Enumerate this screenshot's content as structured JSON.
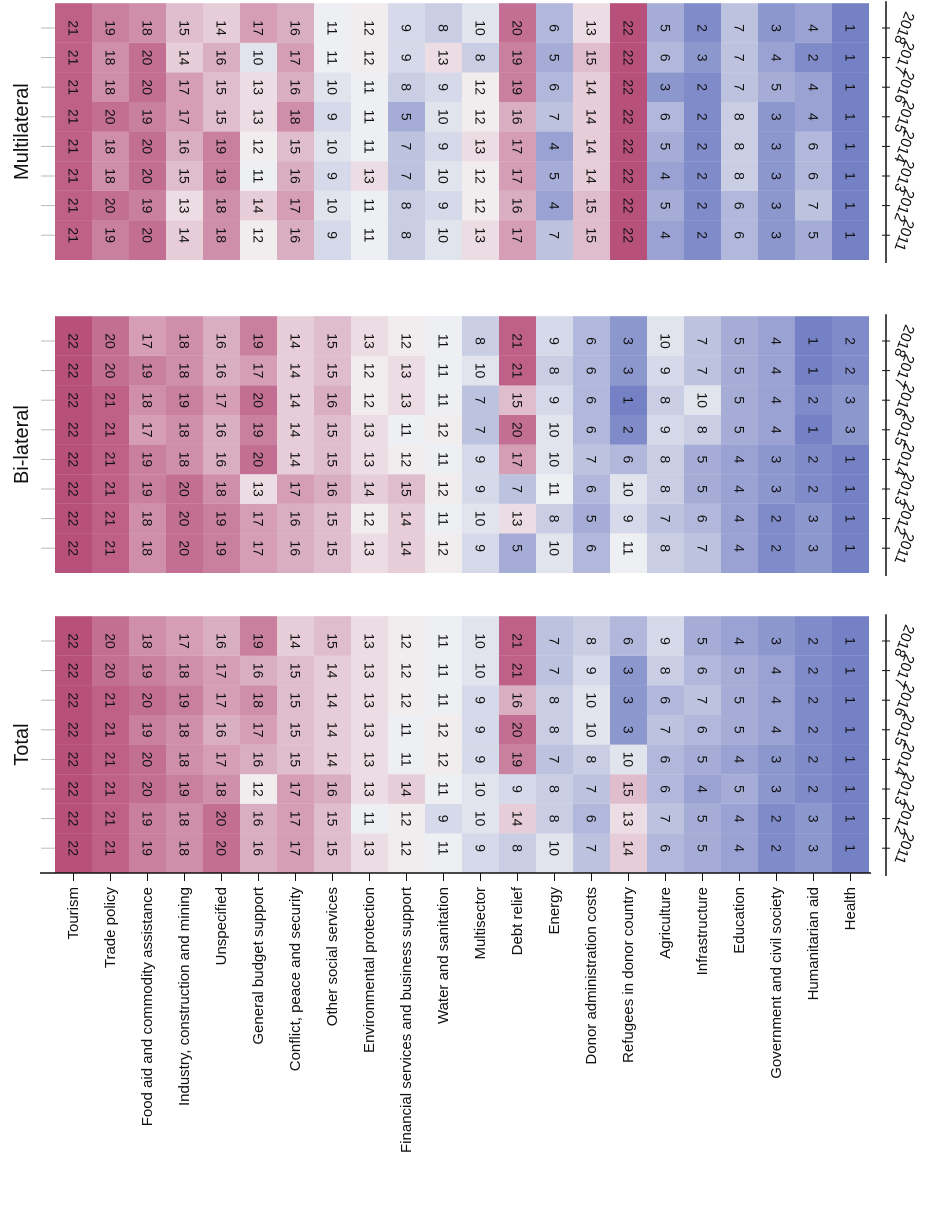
{
  "chart_data": {
    "type": "heatmap",
    "orientation": "rotated 90 degrees clockwise",
    "years": [
      "2011",
      "2012",
      "2013",
      "2014",
      "2015",
      "2016",
      "2017",
      "2018"
    ],
    "sectors": [
      "Tourism",
      "Trade policy",
      "Food aid and commodity assistance",
      "Industry, construction and mining",
      "Unspecified",
      "General budget support",
      "Conflict, peace and security",
      "Other social services",
      "Environmental protection",
      "Financial services and business support",
      "Water and sanitation",
      "Multisector",
      "Debt relief",
      "Energy",
      "Donor administration costs",
      "Refugees in donor country",
      "Agriculture",
      "Infrastructure",
      "Education",
      "Government and civil society",
      "Humanitarian aid",
      "Health"
    ],
    "value_range": [
      1,
      22
    ],
    "colormap": {
      "low": "#7481c4",
      "mid": "#f4f4f4",
      "high": "#b8507c"
    },
    "panels": [
      {
        "title": "Total",
        "values": [
          [
            22,
            22,
            22,
            22,
            22,
            22,
            22,
            22
          ],
          [
            21,
            21,
            21,
            21,
            21,
            21,
            20,
            20
          ],
          [
            19,
            19,
            20,
            20,
            19,
            20,
            19,
            18
          ],
          [
            18,
            18,
            19,
            18,
            18,
            19,
            18,
            17
          ],
          [
            20,
            20,
            18,
            17,
            16,
            17,
            17,
            16
          ],
          [
            16,
            16,
            12,
            16,
            17,
            18,
            16,
            19
          ],
          [
            17,
            17,
            17,
            15,
            15,
            15,
            15,
            14
          ],
          [
            15,
            15,
            16,
            14,
            14,
            14,
            14,
            15
          ],
          [
            13,
            11,
            13,
            13,
            13,
            13,
            13,
            13
          ],
          [
            12,
            12,
            14,
            11,
            11,
            12,
            12,
            12
          ],
          [
            11,
            9,
            11,
            12,
            12,
            11,
            11,
            11
          ],
          [
            9,
            10,
            10,
            9,
            9,
            9,
            10,
            10
          ],
          [
            8,
            14,
            9,
            19,
            20,
            16,
            21,
            21
          ],
          [
            10,
            8,
            8,
            7,
            8,
            8,
            7,
            7
          ],
          [
            7,
            6,
            7,
            8,
            10,
            10,
            9,
            8
          ],
          [
            14,
            13,
            15,
            10,
            3,
            3,
            3,
            6
          ],
          [
            6,
            7,
            6,
            6,
            7,
            6,
            8,
            9
          ],
          [
            5,
            5,
            4,
            5,
            6,
            7,
            6,
            5
          ],
          [
            4,
            4,
            5,
            4,
            5,
            5,
            5,
            4
          ],
          [
            2,
            2,
            3,
            3,
            4,
            4,
            4,
            3
          ],
          [
            3,
            3,
            2,
            2,
            2,
            2,
            2,
            2
          ],
          [
            1,
            1,
            1,
            1,
            1,
            1,
            1,
            1
          ]
        ]
      },
      {
        "title": "Bi-lateral",
        "values": [
          [
            22,
            22,
            22,
            22,
            22,
            22,
            22,
            22
          ],
          [
            21,
            21,
            21,
            21,
            21,
            21,
            20,
            20
          ],
          [
            18,
            18,
            19,
            19,
            17,
            18,
            19,
            17
          ],
          [
            20,
            20,
            20,
            18,
            18,
            19,
            18,
            18
          ],
          [
            19,
            19,
            18,
            16,
            16,
            17,
            16,
            16
          ],
          [
            17,
            17,
            13,
            20,
            19,
            20,
            17,
            19
          ],
          [
            16,
            16,
            17,
            14,
            14,
            14,
            14,
            14
          ],
          [
            15,
            15,
            16,
            15,
            15,
            16,
            15,
            15
          ],
          [
            13,
            12,
            14,
            13,
            13,
            12,
            12,
            13
          ],
          [
            14,
            14,
            15,
            12,
            11,
            13,
            13,
            12
          ],
          [
            12,
            11,
            12,
            11,
            12,
            11,
            11,
            11
          ],
          [
            9,
            10,
            9,
            9,
            7,
            7,
            10,
            8
          ],
          [
            5,
            13,
            7,
            17,
            20,
            15,
            21,
            21
          ],
          [
            10,
            8,
            11,
            10,
            10,
            9,
            8,
            9
          ],
          [
            6,
            5,
            6,
            7,
            6,
            6,
            6,
            6
          ],
          [
            11,
            9,
            10,
            6,
            2,
            1,
            3,
            3
          ],
          [
            8,
            7,
            8,
            8,
            9,
            8,
            9,
            10
          ],
          [
            7,
            6,
            5,
            5,
            8,
            10,
            7,
            7
          ],
          [
            4,
            4,
            4,
            4,
            5,
            5,
            5,
            5
          ],
          [
            2,
            2,
            3,
            3,
            4,
            4,
            4,
            4
          ],
          [
            3,
            3,
            2,
            2,
            1,
            2,
            1,
            1
          ],
          [
            1,
            1,
            1,
            1,
            3,
            3,
            2,
            2
          ]
        ]
      },
      {
        "title": "Multilateral",
        "values": [
          [
            21,
            21,
            21,
            21,
            21,
            21,
            21,
            21
          ],
          [
            19,
            20,
            18,
            18,
            20,
            18,
            18,
            19
          ],
          [
            20,
            19,
            20,
            20,
            19,
            20,
            20,
            18
          ],
          [
            14,
            13,
            15,
            16,
            17,
            17,
            14,
            15
          ],
          [
            18,
            18,
            19,
            19,
            15,
            15,
            16,
            14
          ],
          [
            12,
            14,
            11,
            12,
            13,
            13,
            10,
            17
          ],
          [
            16,
            17,
            16,
            15,
            18,
            16,
            17,
            16
          ],
          [
            9,
            10,
            9,
            10,
            9,
            10,
            11,
            11
          ],
          [
            11,
            11,
            13,
            11,
            11,
            11,
            12,
            12
          ],
          [
            8,
            8,
            7,
            7,
            5,
            8,
            9,
            9
          ],
          [
            10,
            9,
            10,
            9,
            10,
            9,
            13,
            8
          ],
          [
            13,
            12,
            12,
            13,
            12,
            12,
            8,
            10
          ],
          [
            17,
            16,
            17,
            17,
            16,
            19,
            19,
            20
          ],
          [
            7,
            4,
            5,
            4,
            7,
            6,
            5,
            6
          ],
          [
            15,
            15,
            14,
            14,
            14,
            14,
            15,
            13
          ],
          [
            22,
            22,
            22,
            22,
            22,
            22,
            22,
            22
          ],
          [
            4,
            5,
            4,
            5,
            6,
            3,
            6,
            5
          ],
          [
            2,
            2,
            2,
            2,
            2,
            2,
            3,
            2
          ],
          [
            6,
            6,
            8,
            8,
            8,
            7,
            7,
            7
          ],
          [
            3,
            3,
            3,
            3,
            3,
            5,
            4,
            3
          ],
          [
            5,
            7,
            6,
            6,
            4,
            4,
            2,
            4
          ],
          [
            1,
            1,
            1,
            1,
            1,
            1,
            1,
            1
          ]
        ]
      }
    ]
  }
}
